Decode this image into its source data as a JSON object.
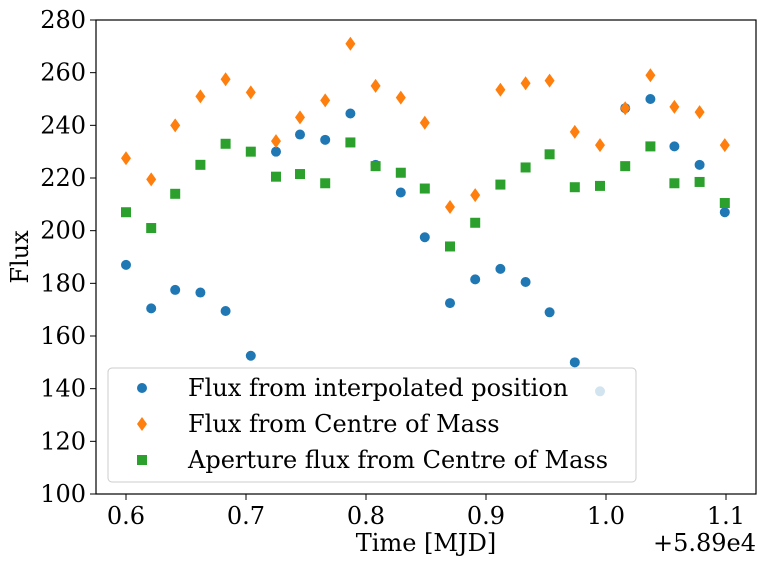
{
  "chart_data": {
    "type": "scatter",
    "title": "",
    "xlabel": "Time [MJD]",
    "ylabel": "Flux",
    "x_offset_label": "+5.89e4",
    "xlim": [
      0.575,
      1.125
    ],
    "ylim": [
      100,
      280
    ],
    "xticks": [
      0.6,
      0.7,
      0.8,
      0.9,
      1.0,
      1.1
    ],
    "xtick_labels": [
      "0.6",
      "0.7",
      "0.8",
      "0.9",
      "1.0",
      "1.1"
    ],
    "yticks": [
      100,
      120,
      140,
      160,
      180,
      200,
      220,
      240,
      260,
      280
    ],
    "grid": false,
    "legend_position": "lower-left",
    "x": [
      0.6,
      0.621,
      0.641,
      0.662,
      0.683,
      0.704,
      0.725,
      0.745,
      0.766,
      0.787,
      0.808,
      0.829,
      0.849,
      0.87,
      0.891,
      0.912,
      0.933,
      0.953,
      0.974,
      0.995,
      1.016,
      1.037,
      1.057,
      1.078,
      1.099
    ],
    "series": [
      {
        "name": "Flux from interpolated position",
        "marker": "circle",
        "color": "#1f77b4",
        "values": [
          187,
          170.5,
          177.5,
          176.5,
          169.5,
          152.5,
          230,
          236.5,
          234.5,
          244.5,
          225,
          214.5,
          197.5,
          172.5,
          181.5,
          185.5,
          180.5,
          169,
          150,
          139,
          246.5,
          250,
          232,
          225,
          207
        ]
      },
      {
        "name": "Flux from Centre of Mass",
        "marker": "diamond",
        "color": "#ff7f0e",
        "values": [
          227.5,
          219.5,
          240,
          251,
          257.5,
          252.5,
          234,
          243,
          249.5,
          271,
          255,
          250.5,
          241,
          209,
          213.5,
          253.5,
          256,
          257,
          237.5,
          232.5,
          246.5,
          259,
          247,
          245,
          232.5
        ]
      },
      {
        "name": "Aperture flux from Centre of Mass",
        "marker": "square",
        "color": "#2ca02c",
        "values": [
          207,
          201,
          214,
          225,
          233,
          230,
          220.5,
          221.5,
          218,
          233.5,
          224.5,
          222,
          216,
          194,
          203,
          217.5,
          224,
          229,
          216.5,
          217,
          224.5,
          232,
          218,
          218.5,
          210.5
        ]
      }
    ]
  }
}
